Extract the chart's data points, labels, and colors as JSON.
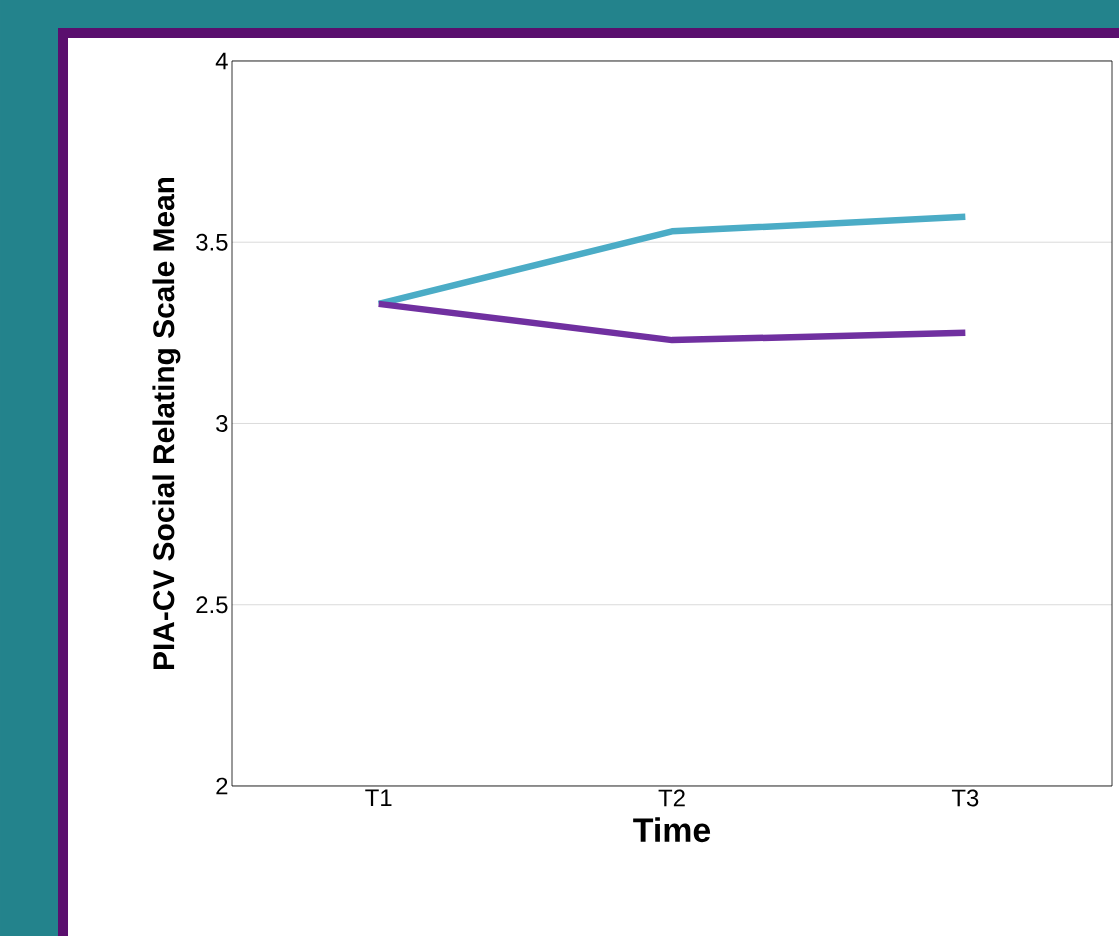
{
  "chart_data": {
    "type": "line",
    "xlabel": "Time",
    "ylabel": "PIA-CV Social Relating Scale Mean",
    "categories": [
      "T1",
      "T2",
      "T3"
    ],
    "series": [
      {
        "color": "#4bacc6",
        "values": [
          3.33,
          3.53,
          3.57
        ]
      },
      {
        "color": "#7030a0",
        "values": [
          3.33,
          3.23,
          3.25
        ]
      }
    ],
    "ylim": [
      2,
      4
    ],
    "yticks": [
      2,
      2.5,
      3,
      3.5,
      4
    ],
    "grid": "y",
    "marker": "none",
    "line_style": "solid"
  }
}
